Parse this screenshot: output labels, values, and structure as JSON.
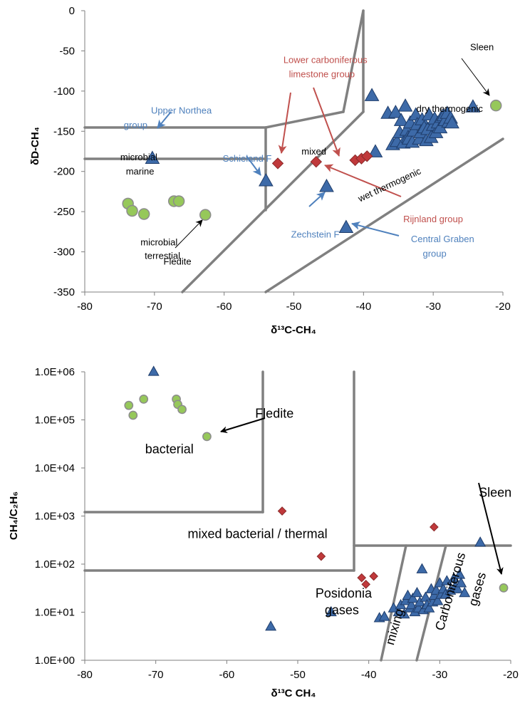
{
  "chart_data": [
    {
      "type": "scatter",
      "xlabel": "δ¹³C-CH₄",
      "ylabel": "δD-CH₄",
      "xlim": [
        -80,
        -20
      ],
      "ylim": [
        -350,
        0
      ],
      "x_ticks": [
        -80,
        -70,
        -60,
        -50,
        -40,
        -30,
        -20
      ],
      "y_ticks": [
        0,
        -50,
        -100,
        -150,
        -200,
        -250,
        -300,
        -350
      ],
      "grid": false,
      "colors": {
        "triangle": "#3d6aa8",
        "diamond": "#c0393b",
        "circle": "#96c85a",
        "boundary": "#808080",
        "blue_label": "#4f81bd",
        "red_label": "#c0504d"
      },
      "series": [
        {
          "marker": "circle",
          "points": [
            [
              -73.8,
              -240
            ],
            [
              -73.2,
              -249
            ],
            [
              -71.5,
              -253
            ],
            [
              -67.2,
              -237
            ],
            [
              -66.5,
              -237
            ],
            [
              -62.7,
              -254
            ],
            [
              -21.0,
              -118
            ]
          ]
        },
        {
          "marker": "triangle",
          "points": [
            [
              -70.3,
              -184
            ],
            [
              -54.0,
              -212
            ],
            [
              -45.3,
              -219
            ],
            [
              -42.5,
              -270
            ],
            [
              -38.8,
              -106
            ],
            [
              -38.3,
              -176
            ],
            [
              -36.5,
              -128
            ],
            [
              -35.8,
              -167
            ],
            [
              -35.4,
              -127
            ],
            [
              -35.2,
              -163
            ],
            [
              -34.8,
              -152
            ],
            [
              -34.6,
              -137
            ],
            [
              -34.3,
              -165
            ],
            [
              -34.0,
              -119
            ],
            [
              -33.8,
              -149
            ],
            [
              -33.6,
              -158
            ],
            [
              -33.5,
              -160
            ],
            [
              -33.3,
              -140
            ],
            [
              -33.0,
              -164
            ],
            [
              -32.8,
              -150
            ],
            [
              -32.5,
              -130
            ],
            [
              -32.3,
              -142
            ],
            [
              -32.0,
              -160
            ],
            [
              -31.8,
              -152
            ],
            [
              -31.6,
              -136
            ],
            [
              -31.3,
              -146
            ],
            [
              -31.0,
              -162
            ],
            [
              -30.8,
              -148
            ],
            [
              -30.6,
              -130
            ],
            [
              -30.3,
              -158
            ],
            [
              -30.0,
              -143
            ],
            [
              -29.8,
              -135
            ],
            [
              -29.6,
              -152
            ],
            [
              -29.3,
              -140
            ],
            [
              -29.0,
              -146
            ],
            [
              -28.8,
              -133
            ],
            [
              -28.5,
              -131
            ],
            [
              -28.3,
              -137
            ],
            [
              -28.0,
              -128
            ],
            [
              -27.8,
              -139
            ],
            [
              -27.5,
              -134
            ],
            [
              -27.3,
              -140
            ],
            [
              -24.3,
              -120
            ]
          ]
        },
        {
          "marker": "diamond",
          "points": [
            [
              -52.3,
              -190
            ],
            [
              -46.8,
              -188
            ],
            [
              -41.2,
              -186
            ],
            [
              -40.3,
              -184
            ],
            [
              -39.5,
              -181
            ]
          ]
        }
      ],
      "annotations": [
        {
          "text": "Upper Northea",
          "at": [
            -70.5,
            -128
          ],
          "color": "#4f81bd"
        },
        {
          "text": "group",
          "at": [
            -74.4,
            -146
          ],
          "color": "#4f81bd"
        },
        {
          "text": "Lower carboniferous",
          "at": [
            -51.5,
            -65
          ],
          "color": "#c0504d"
        },
        {
          "text": "limestone group",
          "at": [
            -50.7,
            -83
          ],
          "color": "#c0504d"
        },
        {
          "text": "dry thermogenic",
          "at": [
            -32.4,
            -126
          ],
          "color": "#000000"
        },
        {
          "text": "Sleen",
          "at": [
            -24.7,
            -49
          ],
          "color": "#000000"
        },
        {
          "text": "mixed",
          "at": [
            -48.9,
            -179
          ],
          "color": "#000000"
        },
        {
          "text": "microbial",
          "at": [
            -74.9,
            -186
          ],
          "color": "#000000"
        },
        {
          "text": "marine",
          "at": [
            -74.1,
            -204
          ],
          "color": "#000000"
        },
        {
          "text": "Schieland F",
          "at": [
            -60.2,
            -188
          ],
          "color": "#4f81bd"
        },
        {
          "text": "wet thermogenic",
          "at": [
            -40.5,
            -238
          ],
          "color": "#000000",
          "rotate": -25
        },
        {
          "text": "Rijnland group",
          "at": [
            -34.3,
            -263
          ],
          "color": "#c0504d"
        },
        {
          "text": "Zechstein F",
          "at": [
            -50.4,
            -282
          ],
          "color": "#4f81bd"
        },
        {
          "text": "Central Graben",
          "at": [
            -33.2,
            -288
          ],
          "color": "#4f81bd"
        },
        {
          "text": "group",
          "at": [
            -31.5,
            -306
          ],
          "color": "#4f81bd"
        },
        {
          "text": "microbial",
          "at": [
            -72.0,
            -292
          ],
          "color": "#000000"
        },
        {
          "text": "terrestial",
          "at": [
            -71.4,
            -309
          ],
          "color": "#000000"
        },
        {
          "text": "Fledite",
          "at": [
            -68.7,
            -316
          ],
          "color": "#000000"
        }
      ]
    },
    {
      "type": "scatter",
      "xlabel": "δ¹³C CH₄",
      "ylabel": "CH₄/C₂H₆",
      "yscale": "log",
      "xlim": [
        -80,
        -20
      ],
      "ylim": [
        1,
        1000000
      ],
      "x_ticks": [
        -80,
        -70,
        -60,
        -50,
        -40,
        -30,
        -20
      ],
      "y_ticks": [
        "1.0E+00",
        "1.0E+01",
        "1.0E+02",
        "1.0E+03",
        "1.0E+04",
        "1.0E+05",
        "1.0E+06"
      ],
      "grid": false,
      "colors": {
        "triangle": "#3d6aa8",
        "diamond": "#c0393b",
        "circle": "#96c85a",
        "boundary": "#808080"
      },
      "series": [
        {
          "marker": "circle",
          "points": [
            [
              -73.8,
              200000
            ],
            [
              -73.2,
              125000
            ],
            [
              -71.7,
              270000
            ],
            [
              -67.1,
              270000
            ],
            [
              -66.9,
              210000
            ],
            [
              -66.3,
              165000
            ],
            [
              -62.8,
              45000
            ],
            [
              -21.0,
              32
            ]
          ]
        },
        {
          "marker": "triangle",
          "points": [
            [
              -70.3,
              1000000
            ],
            [
              -53.8,
              5
            ],
            [
              -45.3,
              10
            ],
            [
              -38.5,
              7.5
            ],
            [
              -37.8,
              8
            ],
            [
              -36.5,
              12
            ],
            [
              -35.8,
              10
            ],
            [
              -35.5,
              14
            ],
            [
              -35.0,
              9
            ],
            [
              -34.8,
              17
            ],
            [
              -34.5,
              22
            ],
            [
              -34.2,
              12
            ],
            [
              -34.0,
              14
            ],
            [
              -33.8,
              19
            ],
            [
              -33.5,
              10
            ],
            [
              -33.2,
              25
            ],
            [
              -33.0,
              12
            ],
            [
              -32.8,
              16
            ],
            [
              -32.5,
              78
            ],
            [
              -32.3,
              11
            ],
            [
              -32.0,
              20
            ],
            [
              -31.8,
              14
            ],
            [
              -31.5,
              12
            ],
            [
              -31.2,
              30
            ],
            [
              -31.0,
              16
            ],
            [
              -30.8,
              22
            ],
            [
              -30.5,
              28
            ],
            [
              -30.3,
              17
            ],
            [
              -30.0,
              40
            ],
            [
              -29.8,
              23
            ],
            [
              -29.5,
              30
            ],
            [
              -29.2,
              23
            ],
            [
              -29.0,
              44
            ],
            [
              -28.5,
              28
            ],
            [
              -28.0,
              50
            ],
            [
              -27.8,
              34
            ],
            [
              -27.5,
              30
            ],
            [
              -27.2,
              60
            ],
            [
              -27.0,
              40
            ],
            [
              -26.5,
              25
            ],
            [
              -24.3,
              280
            ]
          ]
        },
        {
          "marker": "diamond",
          "points": [
            [
              -52.2,
              1270
            ],
            [
              -46.7,
              145
            ],
            [
              -41.0,
              52
            ],
            [
              -40.4,
              38
            ],
            [
              -39.3,
              56
            ],
            [
              -30.8,
              590
            ]
          ]
        }
      ],
      "annotations": [
        {
          "text": "Fledite",
          "at": [
            -56.0,
            110000
          ],
          "color": "#000000"
        },
        {
          "text": "bacterial",
          "at": [
            -71.5,
            20000
          ],
          "color": "#000000"
        },
        {
          "text": "Sleen",
          "at": [
            -24.5,
            2500
          ],
          "color": "#000000"
        },
        {
          "text": "mixed bacterial / thermal",
          "at": [
            -65.5,
            350
          ],
          "color": "#000000"
        },
        {
          "text": "Posidonia",
          "at": [
            -47.5,
            20
          ],
          "color": "#000000"
        },
        {
          "text": "gases",
          "at": [
            -46.2,
            9
          ],
          "color": "#000000"
        },
        {
          "text": "mixing",
          "at": [
            -36.5,
            2
          ],
          "color": "#000000",
          "rotate": -74
        },
        {
          "text": "Carboniferous",
          "at": [
            -29.5,
            4
          ],
          "color": "#000000",
          "rotate": -74
        },
        {
          "text": "gases",
          "at": [
            -24.8,
            13
          ],
          "color": "#000000",
          "rotate": -74
        }
      ]
    }
  ]
}
